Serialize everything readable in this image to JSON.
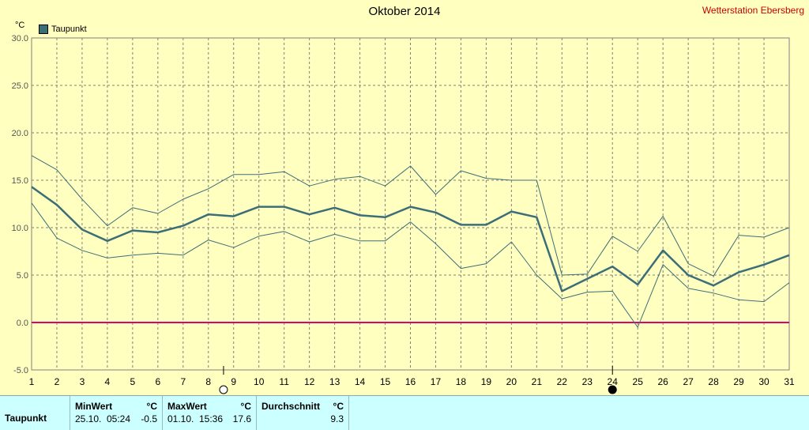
{
  "title": "Oktober 2014",
  "station": "Wetterstation Ebersberg",
  "unit": "°C",
  "legend": {
    "label": "Taupunkt",
    "color": "#3C6E78"
  },
  "moon": {
    "full_day": 8.6,
    "new_day": 24
  },
  "chart_data": {
    "type": "line",
    "title": "Oktober 2014",
    "ylabel": "°C",
    "ylim": [
      -5,
      30
    ],
    "yticks": [
      -5,
      0,
      5,
      10,
      15,
      20,
      25,
      30
    ],
    "ytick_labels": [
      "-5.0",
      "0.0",
      "5.0",
      "10.0",
      "15.0",
      "20.0",
      "25.0",
      "30.0"
    ],
    "xlim": [
      1,
      31
    ],
    "x": [
      1,
      2,
      3,
      4,
      5,
      6,
      7,
      8,
      9,
      10,
      11,
      12,
      13,
      14,
      15,
      16,
      17,
      18,
      19,
      20,
      21,
      22,
      23,
      24,
      25,
      26,
      27,
      28,
      29,
      30,
      31
    ],
    "grid": true,
    "legend_position": "top-left",
    "series": [
      {
        "name": "Taupunkt",
        "role": "mean",
        "color": "#3C6E78",
        "values": [
          14.3,
          12.4,
          9.8,
          8.6,
          9.7,
          9.5,
          10.2,
          11.4,
          11.2,
          12.2,
          12.2,
          11.4,
          12.1,
          11.3,
          11.1,
          12.2,
          11.6,
          10.3,
          10.3,
          11.7,
          11.1,
          3.3,
          4.6,
          5.9,
          4.0,
          7.6,
          5.0,
          3.9,
          5.3,
          6.1,
          7.1
        ]
      },
      {
        "role": "max",
        "color": "#3C6E78",
        "values": [
          17.6,
          16.1,
          13.0,
          10.2,
          12.1,
          11.5,
          13.0,
          14.1,
          15.6,
          15.6,
          15.9,
          14.4,
          15.1,
          15.4,
          14.4,
          16.5,
          13.5,
          16.0,
          15.2,
          15.0,
          15.0,
          5.0,
          5.1,
          9.1,
          7.5,
          11.2,
          6.2,
          4.9,
          9.2,
          9.0,
          10.0
        ]
      },
      {
        "role": "min",
        "color": "#3C6E78",
        "values": [
          12.6,
          8.9,
          7.6,
          6.8,
          7.1,
          7.3,
          7.1,
          8.7,
          7.9,
          9.1,
          9.6,
          8.5,
          9.3,
          8.6,
          8.6,
          10.6,
          8.3,
          5.7,
          6.2,
          8.5,
          5.0,
          2.5,
          3.2,
          3.3,
          -0.5,
          6.1,
          3.6,
          3.1,
          2.4,
          2.2,
          4.2
        ]
      }
    ],
    "reference_line": {
      "y": 0,
      "color": "#E0006E"
    }
  },
  "stats": {
    "row_label": "Taupunkt",
    "min": {
      "header": "MinWert",
      "unit": "°C",
      "date": "25.10.",
      "time": "05:24",
      "value": "-0.5"
    },
    "max": {
      "header": "MaxWert",
      "unit": "°C",
      "date": "01.10.",
      "time": "15:36",
      "value": "17.6"
    },
    "avg": {
      "header": "Durchschnitt",
      "unit": "°C",
      "value": "9.3"
    }
  }
}
